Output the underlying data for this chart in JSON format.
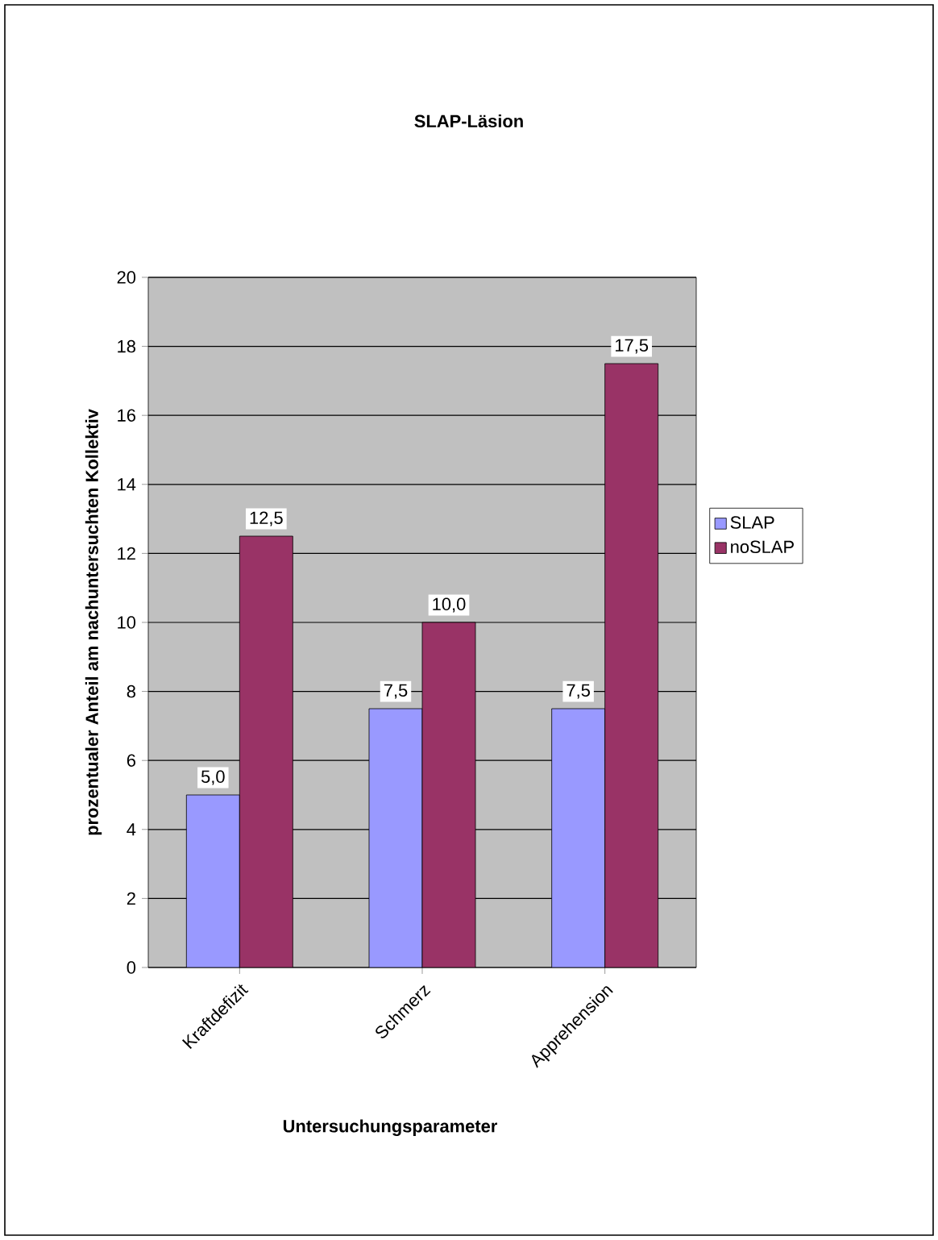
{
  "chart_data": {
    "type": "bar",
    "title": "SLAP-Läsion",
    "xlabel": "Untersuchungsparameter",
    "ylabel": "prozentualer Anteil am nachuntersuchten Kollektiv",
    "categories": [
      "Kraftdefizit",
      "Schmerz",
      "Apprehension"
    ],
    "series": [
      {
        "name": "SLAP",
        "color": "#9999ff",
        "values": [
          5.0,
          7.5,
          7.5
        ],
        "value_labels": [
          "5,0",
          "7,5",
          "7,5"
        ]
      },
      {
        "name": "noSLAP",
        "color": "#993366",
        "values": [
          12.5,
          10.0,
          17.5
        ],
        "value_labels": [
          "12,5",
          "10,0",
          "17,5"
        ]
      }
    ],
    "ylim": [
      0,
      20
    ],
    "yticks": [
      0,
      2,
      4,
      6,
      8,
      10,
      12,
      14,
      16,
      18,
      20
    ],
    "grid": "y",
    "legend": "right"
  }
}
